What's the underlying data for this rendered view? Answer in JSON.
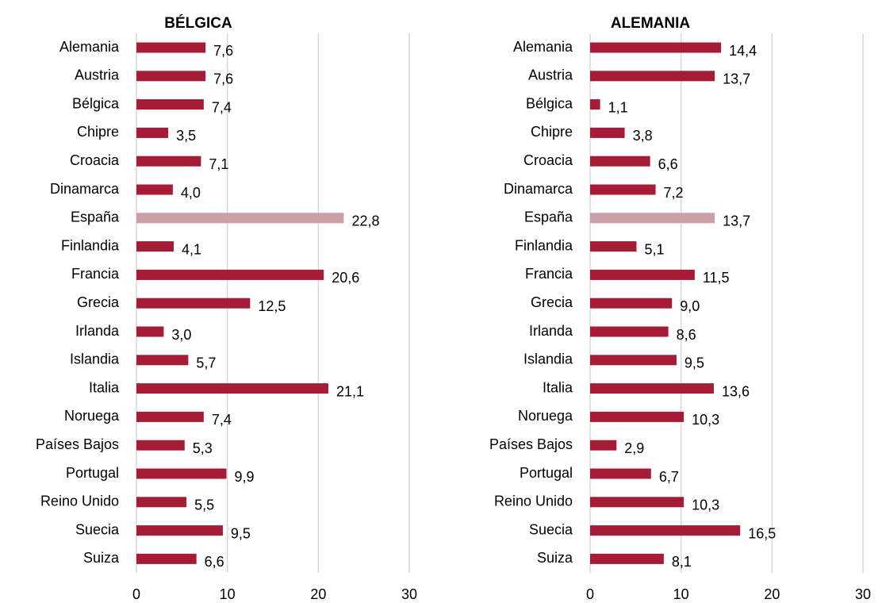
{
  "chart_data": [
    {
      "type": "barh",
      "title": "BÉLGICA",
      "categories": [
        "Alemania",
        "Austria",
        "Bélgica",
        "Chipre",
        "Croacia",
        "Dinamarca",
        "España",
        "Finlandia",
        "Francia",
        "Grecia",
        "Irlanda",
        "Islandia",
        "Italia",
        "Noruega",
        "Países Bajos",
        "Portugal",
        "Reino Unido",
        "Suecia",
        "Suiza"
      ],
      "values": [
        7.6,
        7.6,
        7.4,
        3.5,
        7.1,
        4.0,
        22.8,
        4.1,
        20.6,
        12.5,
        3.0,
        5.7,
        21.1,
        7.4,
        5.3,
        9.9,
        5.5,
        9.5,
        6.6
      ],
      "value_labels": [
        "7,6",
        "7,6",
        "7,4",
        "3,5",
        "7,1",
        "4,0",
        "22,8",
        "4,1",
        "20,6",
        "12,5",
        "3,0",
        "5,7",
        "21,1",
        "7,4",
        "5,3",
        "9,9",
        "5,5",
        "9,5",
        "6,6"
      ],
      "colors": [
        "#a61b36",
        "#a61b36",
        "#a61b36",
        "#a61b36",
        "#a61b36",
        "#a61b36",
        "#c9a0a6",
        "#a61b36",
        "#a61b36",
        "#a61b36",
        "#a61b36",
        "#a61b36",
        "#a61b36",
        "#a61b36",
        "#a61b36",
        "#a61b36",
        "#a61b36",
        "#a61b36",
        "#a61b36"
      ],
      "xlim": [
        0,
        30
      ],
      "xticks": [
        0,
        10,
        20,
        30
      ],
      "grid": true
    },
    {
      "type": "barh",
      "title": "ALEMANIA",
      "categories": [
        "Alemania",
        "Austria",
        "Bélgica",
        "Chipre",
        "Croacia",
        "Dinamarca",
        "España",
        "Finlandia",
        "Francia",
        "Grecia",
        "Irlanda",
        "Islandia",
        "Italia",
        "Noruega",
        "Países Bajos",
        "Portugal",
        "Reino Unido",
        "Suecia",
        "Suiza"
      ],
      "values": [
        14.4,
        13.7,
        1.1,
        3.8,
        6.6,
        7.2,
        13.7,
        5.1,
        11.5,
        9.0,
        8.6,
        9.5,
        13.6,
        10.3,
        2.9,
        6.7,
        10.3,
        16.5,
        8.1
      ],
      "value_labels": [
        "14,4",
        "13,7",
        "1,1",
        "3,8",
        "6,6",
        "7,2",
        "13,7",
        "5,1",
        "11,5",
        "9,0",
        "8,6",
        "9,5",
        "13,6",
        "10,3",
        "2,9",
        "6,7",
        "10,3",
        "16,5",
        "8,1"
      ],
      "colors": [
        "#a61b36",
        "#a61b36",
        "#a61b36",
        "#a61b36",
        "#a61b36",
        "#a61b36",
        "#c9a0a6",
        "#a61b36",
        "#a61b36",
        "#a61b36",
        "#a61b36",
        "#a61b36",
        "#a61b36",
        "#a61b36",
        "#a61b36",
        "#a61b36",
        "#a61b36",
        "#a61b36",
        "#a61b36"
      ],
      "xlim": [
        0,
        30
      ],
      "xticks": [
        0,
        10,
        20,
        30
      ],
      "grid": true
    }
  ]
}
